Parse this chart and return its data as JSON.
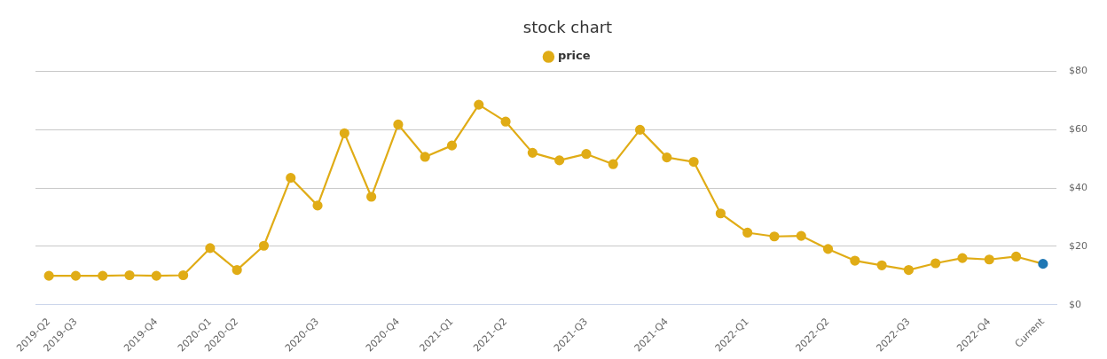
{
  "chart_data": {
    "type": "line",
    "title": "stock chart",
    "categories": [
      "2019-Q2",
      "2019-Q3",
      null,
      null,
      "2019-Q4",
      null,
      "2020-Q1",
      "2020-Q2",
      null,
      null,
      "2020-Q3",
      null,
      null,
      "2020-Q4",
      null,
      "2021-Q1",
      null,
      "2021-Q2",
      null,
      null,
      "2021-Q3",
      null,
      null,
      "2021-Q4",
      null,
      null,
      "2022-Q1",
      null,
      null,
      "2022-Q2",
      null,
      null,
      "2022-Q3",
      null,
      null,
      "2022-Q4",
      null,
      "Current"
    ],
    "series": [
      {
        "name": "price",
        "color": "#e0ac16",
        "colors": [
          "#e0ac16",
          "#e0ac16",
          "#e0ac16",
          "#e0ac16",
          "#e0ac16",
          "#e0ac16",
          "#e0ac16",
          "#e0ac16",
          "#e0ac16",
          "#e0ac16",
          "#e0ac16",
          "#e0ac16",
          "#e0ac16",
          "#e0ac16",
          "#e0ac16",
          "#e0ac16",
          "#e0ac16",
          "#e0ac16",
          "#e0ac16",
          "#e0ac16",
          "#e0ac16",
          "#e0ac16",
          "#e0ac16",
          "#e0ac16",
          "#e0ac16",
          "#e0ac16",
          "#e0ac16",
          "#e0ac16",
          "#e0ac16",
          "#e0ac16",
          "#e0ac16",
          "#e0ac16",
          "#e0ac16",
          "#e0ac16",
          "#e0ac16",
          "#e0ac16",
          "#e0ac16",
          "#1f77b4"
        ],
        "values": [
          9.9,
          9.9,
          9.9,
          10.1,
          9.9,
          10.1,
          19.4,
          11.9,
          20.2,
          43.5,
          34.0,
          58.8,
          37.0,
          61.8,
          50.7,
          54.6,
          68.6,
          62.8,
          52.1,
          49.5,
          51.7,
          48.2,
          60.0,
          50.5,
          49.0,
          31.3,
          24.7,
          23.4,
          23.6,
          19.1,
          15.1,
          13.5,
          11.9,
          14.2,
          16.0,
          15.5,
          16.5,
          14.0
        ]
      }
    ],
    "ylim": [
      0,
      80
    ],
    "yticks": [
      {
        "value": 0,
        "label": "$0"
      },
      {
        "value": 20,
        "label": "$20"
      },
      {
        "value": 40,
        "label": "$40"
      },
      {
        "value": 60,
        "label": "$60"
      },
      {
        "value": 80,
        "label": "$80"
      }
    ],
    "grid": "y",
    "legend": "top",
    "marker": "circle",
    "line_style": "solid"
  }
}
